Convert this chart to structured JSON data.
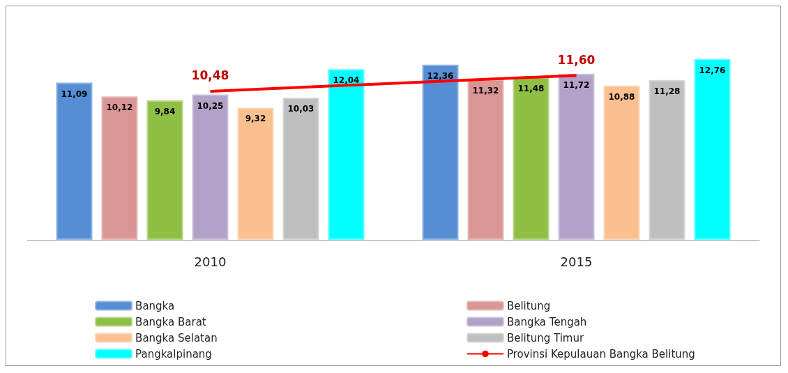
{
  "chart_data": {
    "type": "bar",
    "categories": [
      "2010",
      "2015"
    ],
    "legend": "bottom",
    "series": [
      {
        "name": "Bangka",
        "color": "#558ed5",
        "values": [
          11.09,
          12.36
        ],
        "value_labels": [
          "11,09",
          "12,36"
        ]
      },
      {
        "name": "Belitung",
        "color": "#d99694",
        "values": [
          10.12,
          11.32
        ],
        "value_labels": [
          "10,12",
          "11,32"
        ]
      },
      {
        "name": "Bangka Barat",
        "color": "#8fbf45",
        "values": [
          9.84,
          11.48
        ],
        "value_labels": [
          "9,84",
          "11,48"
        ]
      },
      {
        "name": "Bangka Tengah",
        "color": "#b3a2c7",
        "values": [
          10.25,
          11.72
        ],
        "value_labels": [
          "10,25",
          "11,72"
        ]
      },
      {
        "name": "Bangka Selatan",
        "color": "#fac090",
        "values": [
          9.32,
          10.88
        ],
        "value_labels": [
          "9,32",
          "10,88"
        ]
      },
      {
        "name": "Belitung Timur",
        "color": "#bfbfbf",
        "values": [
          10.03,
          11.28
        ],
        "value_labels": [
          "10,03",
          "11,28"
        ]
      },
      {
        "name": "Pangkalpinang",
        "color": "#00ffff",
        "values": [
          12.04,
          12.76
        ],
        "value_labels": [
          "12,04",
          "12,76"
        ]
      },
      {
        "name": "Provinsi Kepulauan Bangka Belitung",
        "type": "line",
        "color": "#ff0000",
        "marker": "none",
        "line_style": "solid",
        "values": [
          10.48,
          11.6
        ],
        "value_labels": [
          "10,48",
          "11,60"
        ]
      }
    ]
  }
}
